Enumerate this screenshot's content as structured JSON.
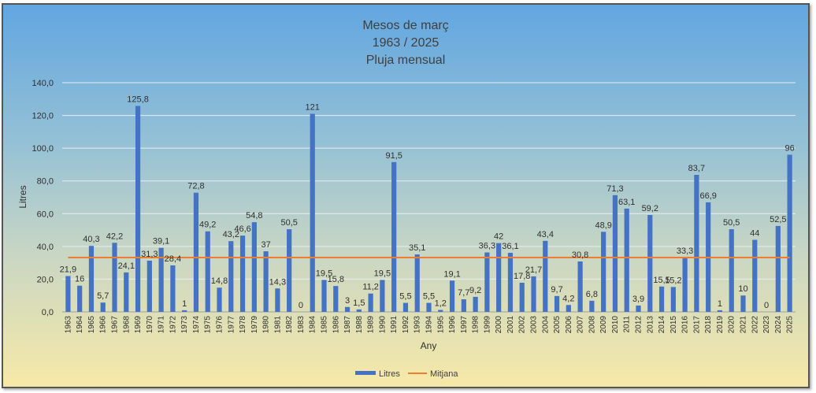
{
  "chart_data": {
    "type": "bar",
    "title_lines": [
      "Mesos de març",
      "1963 / 2025",
      "Pluja mensual"
    ],
    "xlabel": "Any",
    "ylabel": "Litres",
    "ylim": [
      0,
      140
    ],
    "yticks": [
      "0,0",
      "20,0",
      "40,0",
      "60,0",
      "80,0",
      "100,0",
      "120,0",
      "140,0"
    ],
    "grid": true,
    "legend_position": "bottom",
    "categories": [
      "1963",
      "1964",
      "1965",
      "1966",
      "1967",
      "1968",
      "1969",
      "1970",
      "1971",
      "1972",
      "1973",
      "1974",
      "1975",
      "1976",
      "1977",
      "1978",
      "1979",
      "1980",
      "1981",
      "1982",
      "1983",
      "1984",
      "1985",
      "1986",
      "1987",
      "1988",
      "1989",
      "1990",
      "1991",
      "1992",
      "1993",
      "1994",
      "1995",
      "1996",
      "1997",
      "1998",
      "1999",
      "2000",
      "2001",
      "2002",
      "2003",
      "2004",
      "2005",
      "2006",
      "2007",
      "2008",
      "2009",
      "2010",
      "2011",
      "2012",
      "2013",
      "2014",
      "2015",
      "2016",
      "2017",
      "2018",
      "2019",
      "2020",
      "2021",
      "2022",
      "2023",
      "2024",
      "2025"
    ],
    "series": [
      {
        "name": "Litres",
        "kind": "bar",
        "color": "#4472c4",
        "values": [
          21.9,
          16,
          40.3,
          5.7,
          42.2,
          24.1,
          125.8,
          31.3,
          39.1,
          28.4,
          1,
          72.8,
          49.2,
          14.8,
          43.2,
          46.6,
          54.8,
          37,
          14.3,
          50.5,
          0,
          121,
          19.5,
          15.8,
          3,
          1.5,
          11.2,
          19.5,
          91.5,
          5.5,
          35.1,
          5.5,
          1.2,
          19.1,
          7.7,
          9.2,
          36.3,
          42,
          36.1,
          17.8,
          21.7,
          43.4,
          9.7,
          4.2,
          30.8,
          6.8,
          48.9,
          71.3,
          63.1,
          3.9,
          59.2,
          15.5,
          15.2,
          33.3,
          83.7,
          66.9,
          1,
          50.5,
          10,
          44,
          0,
          52.5,
          96
        ],
        "labels": [
          "21,9",
          "16",
          "40,3",
          "5,7",
          "42,2",
          "24,1",
          "125,8",
          "31,3",
          "39,1",
          "28,4",
          "1",
          "72,8",
          "49,2",
          "14,8",
          "43,2",
          "46,6",
          "54,8",
          "37",
          "14,3",
          "50,5",
          "0",
          "121",
          "19,5",
          "15,8",
          "3",
          "1,5",
          "11,2",
          "19,5",
          "91,5",
          "5,5",
          "35,1",
          "5,5",
          "1,2",
          "19,1",
          "7,7",
          "9,2",
          "36,3",
          "42",
          "36,1",
          "17,8",
          "21,7",
          "43,4",
          "9,7",
          "4,2",
          "30,8",
          "6,8",
          "48,9",
          "71,3",
          "63,1",
          "3,9",
          "59,2",
          "15,5",
          "15,2",
          "33,3",
          "83,7",
          "66,9",
          "1",
          "50,5",
          "10",
          "44",
          "0",
          "52,5",
          "96"
        ]
      },
      {
        "name": "Mitjana",
        "kind": "line",
        "color": "#ed7d31",
        "value": 33.2
      }
    ]
  }
}
